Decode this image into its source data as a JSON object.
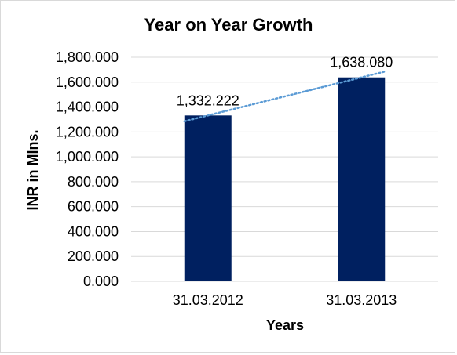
{
  "chart_data": {
    "type": "bar",
    "title": "Year on Year Growth",
    "xlabel": "Years",
    "ylabel": "INR in Mlns.",
    "categories": [
      "31.03.2012",
      "31.03.2013"
    ],
    "values": [
      1332.222,
      1638.08
    ],
    "value_labels": [
      "1,332.222",
      "1,638.080"
    ],
    "ylim": [
      0,
      1800
    ],
    "y_ticks": [
      0,
      200,
      400,
      600,
      800,
      1000,
      1200,
      1400,
      1600,
      1800
    ],
    "y_tick_labels": [
      "0.000",
      "200.000",
      "400.000",
      "600.000",
      "800.000",
      "1,000.000",
      "1,200.000",
      "1,400.000",
      "1,600.000",
      "1,800.000"
    ],
    "grid": true,
    "legend": "none",
    "trendline": "linear, dotted",
    "colors": {
      "bar": "#002060",
      "trendline": "#5b9bd5",
      "grid": "#d9d9d9"
    }
  }
}
